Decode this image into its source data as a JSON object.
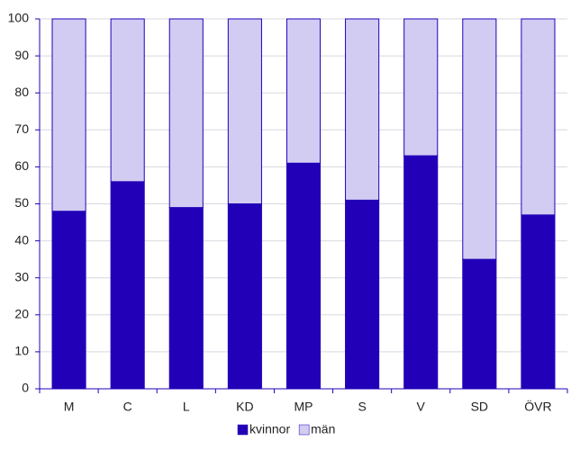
{
  "chart_data": {
    "type": "stacked_bar",
    "categories": [
      "M",
      "C",
      "L",
      "KD",
      "MP",
      "S",
      "V",
      "SD",
      "ÖVR"
    ],
    "series": [
      {
        "name": "kvinnor",
        "color": "#2200b8",
        "values": [
          48,
          56,
          49,
          50,
          61,
          51,
          63,
          35,
          47
        ]
      },
      {
        "name": "män",
        "color": "#d2ccf2",
        "values": [
          52,
          44,
          51,
          50,
          39,
          49,
          37,
          65,
          53
        ]
      }
    ],
    "ylim": [
      0,
      100
    ],
    "yticks": [
      0,
      10,
      20,
      30,
      40,
      50,
      60,
      70,
      80,
      90,
      100
    ],
    "grid": true
  }
}
